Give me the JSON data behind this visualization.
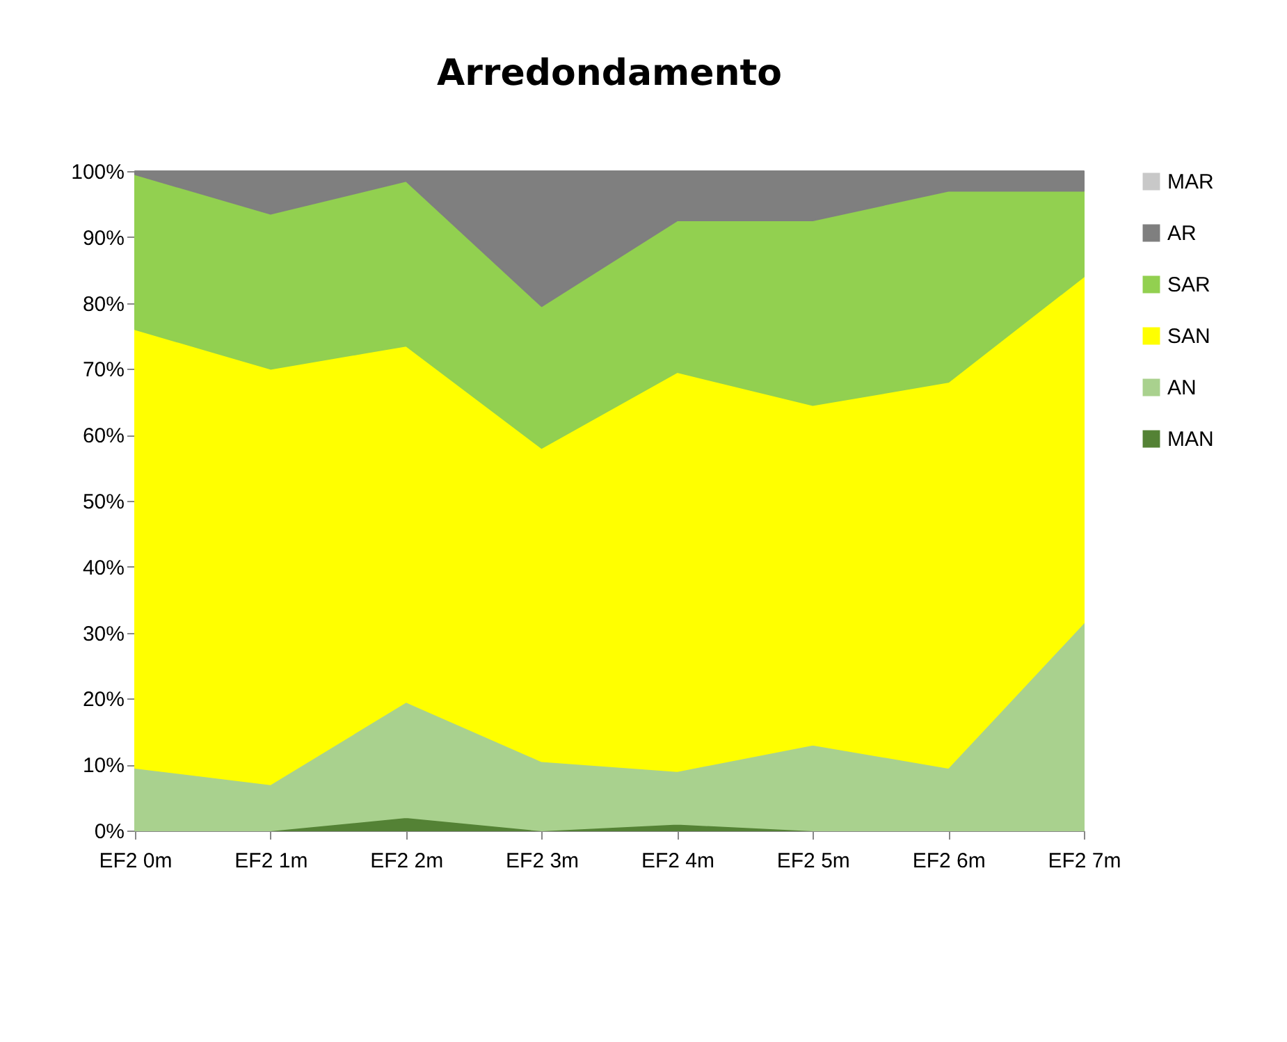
{
  "chart_data": {
    "type": "area",
    "title": "Arredondamento",
    "stacked": true,
    "legend": "right",
    "grid": false,
    "categories": [
      "EF2 0m",
      "EF2 1m",
      "EF2 2m",
      "EF2 3m",
      "EF2 4m",
      "EF2 5m",
      "EF2 6m",
      "EF2 7m"
    ],
    "ylim": [
      0,
      100
    ],
    "yticks": [
      {
        "value": 0,
        "label": "0%"
      },
      {
        "value": 10,
        "label": "10%"
      },
      {
        "value": 20,
        "label": "20%"
      },
      {
        "value": 30,
        "label": "30%"
      },
      {
        "value": 40,
        "label": "40%"
      },
      {
        "value": 50,
        "label": "50%"
      },
      {
        "value": 60,
        "label": "60%"
      },
      {
        "value": 70,
        "label": "70%"
      },
      {
        "value": 80,
        "label": "80%"
      },
      {
        "value": 90,
        "label": "90%"
      },
      {
        "value": 100,
        "label": "100%"
      }
    ],
    "series": [
      {
        "name": "MAN",
        "color": "#548235",
        "values": [
          0,
          0,
          2,
          0,
          1,
          0,
          0,
          0
        ]
      },
      {
        "name": "AN",
        "color": "#a9d18e",
        "values": [
          9.5,
          7,
          17.5,
          10.5,
          8,
          13,
          9.5,
          31.5
        ]
      },
      {
        "name": "SAN",
        "color": "#ffff00",
        "values": [
          66.5,
          63,
          54,
          47.5,
          60.5,
          51.5,
          58.5,
          52.5
        ]
      },
      {
        "name": "SAR",
        "color": "#92d050",
        "values": [
          23.5,
          23.5,
          25,
          21.5,
          23,
          28,
          29,
          13
        ]
      },
      {
        "name": "AR",
        "color": "#7f7f7f",
        "values": [
          0.5,
          6.5,
          1.5,
          20.5,
          7.5,
          7.5,
          3,
          3
        ]
      },
      {
        "name": "MAR",
        "color": "#c8c8c8",
        "values": [
          null,
          null,
          null,
          null,
          null,
          null,
          null,
          null
        ]
      }
    ]
  }
}
